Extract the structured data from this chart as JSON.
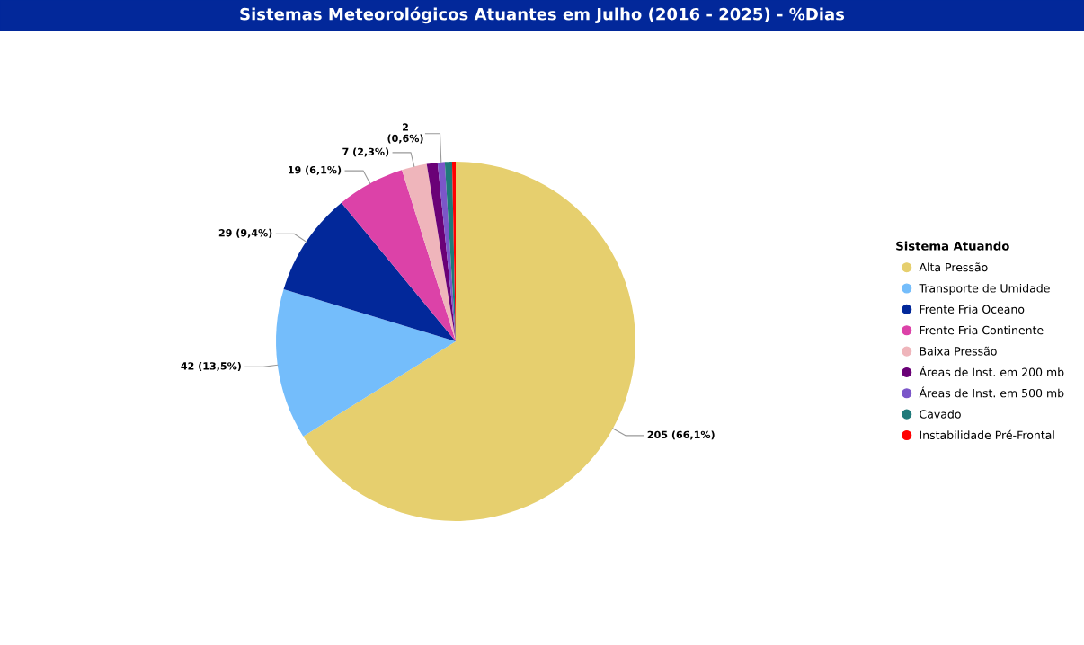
{
  "chart_data": {
    "type": "pie",
    "title": "Sistemas Meteorológicos Atuantes em Julho (2016 - 2025) - %Dias",
    "legend_title": "Sistema Atuando",
    "legend": "right",
    "categories": [
      "Alta Pressão",
      "Transporte de Umidade",
      "Frente Fria Oceano",
      "Frente Fria Continente",
      "Baixa Pressão",
      "Áreas de Inst. em 200 mb",
      "Áreas de Inst. em 500 mb",
      "Cavado",
      "Instabilidade Pré-Frontal"
    ],
    "values": [
      205,
      42,
      29,
      19,
      7,
      3,
      2,
      2,
      1
    ],
    "colors": [
      "#e6cf6e",
      "#74bdfb",
      "#02289a",
      "#dc42a8",
      "#efb5bb",
      "#6a0177",
      "#7b56c9",
      "#1f7a7a",
      "#ff0000"
    ],
    "value_labels": [
      "205 (66,1%)",
      "42 (13,5%)",
      "29 (9,4%)",
      "19 (6,1%)",
      "7 (2,3%)",
      null,
      "2\n(0,6%)",
      null,
      null
    ]
  }
}
